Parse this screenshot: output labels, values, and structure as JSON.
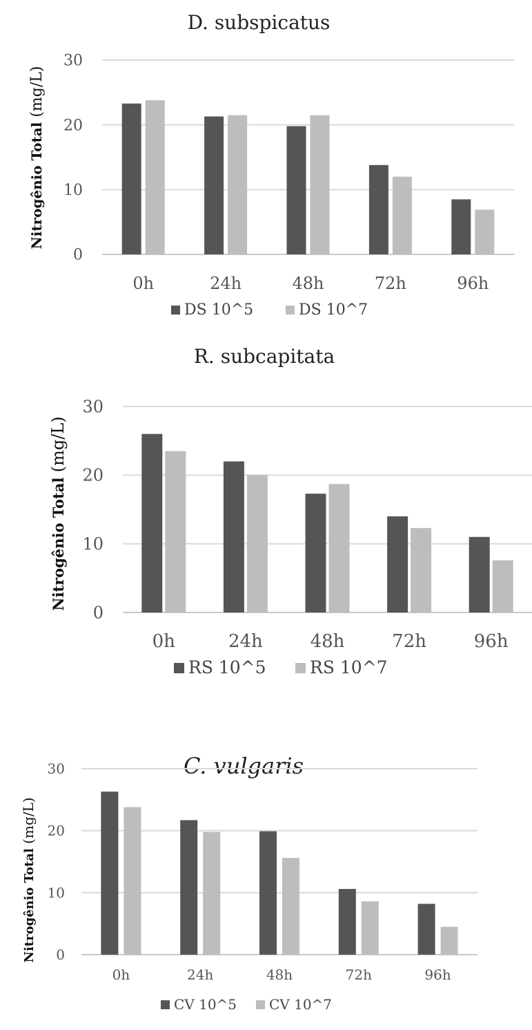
{
  "chart_data": [
    {
      "type": "bar",
      "title": "D. subspicatus",
      "ylabel": "Nitrogênio Total",
      "yunit": "(mg/L)",
      "ylim": [
        0,
        30
      ],
      "yticks": [
        "0",
        "10",
        "20",
        "30"
      ],
      "categories": [
        "0h",
        "24h",
        "48h",
        "72h",
        "96h"
      ],
      "legend_position": "bottom",
      "series": [
        {
          "name": "DS 10^5",
          "color": "#555555",
          "values": [
            23.3,
            21.3,
            19.8,
            13.8,
            8.5
          ]
        },
        {
          "name": "DS 10^7",
          "color": "#bdbdbd",
          "values": [
            23.8,
            21.5,
            21.5,
            12.0,
            6.9
          ]
        }
      ]
    },
    {
      "type": "bar",
      "title": "R. subcapitata",
      "ylabel": "Nitrogênio Total",
      "yunit": "(mg/L)",
      "ylim": [
        0,
        30
      ],
      "yticks": [
        "0",
        "10",
        "20",
        "30"
      ],
      "categories": [
        "0h",
        "24h",
        "48h",
        "72h",
        "96h"
      ],
      "legend_position": "bottom",
      "series": [
        {
          "name": "RS  10^5",
          "color": "#555555",
          "values": [
            26.0,
            22.0,
            17.3,
            14.0,
            11.0
          ]
        },
        {
          "name": "RS  10^7",
          "color": "#bdbdbd",
          "values": [
            23.5,
            20.0,
            18.7,
            12.3,
            7.6
          ]
        }
      ]
    },
    {
      "type": "bar",
      "title": "C. vulgaris",
      "ylabel": "Nitrogênio Total",
      "yunit": "(mg/L)",
      "ylim": [
        0,
        30
      ],
      "yticks": [
        "0",
        "10",
        "20",
        "30"
      ],
      "categories": [
        "0h",
        "24h",
        "48h",
        "72h",
        "96h"
      ],
      "legend_position": "bottom",
      "series": [
        {
          "name": "CV 10^5",
          "color": "#555555",
          "values": [
            26.3,
            21.7,
            19.9,
            10.6,
            8.2
          ]
        },
        {
          "name": "CV 10^7",
          "color": "#bdbdbd",
          "values": [
            23.8,
            19.8,
            15.6,
            8.6,
            4.5
          ]
        }
      ]
    }
  ]
}
